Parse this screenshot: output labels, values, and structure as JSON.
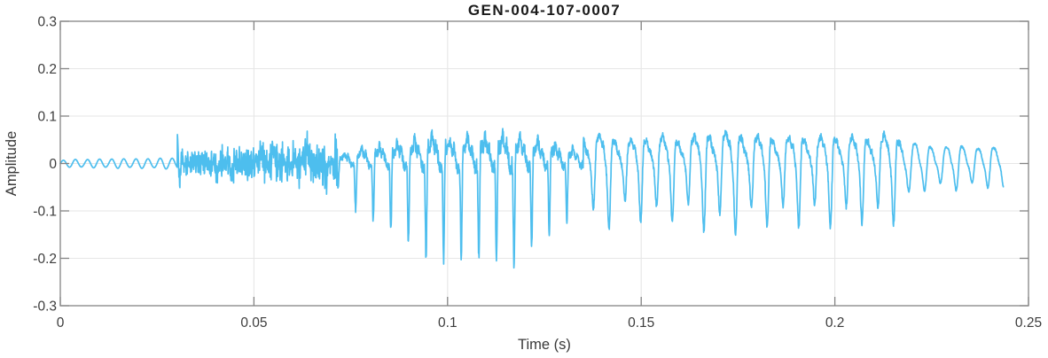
{
  "window": {
    "background": "#ffffff"
  },
  "chart_data": {
    "type": "line",
    "title": "GEN-004-107-0007",
    "xlabel": "Time (s)",
    "ylabel": "Amplitude",
    "xlim": [
      0,
      0.25
    ],
    "ylim": [
      -0.3,
      0.3
    ],
    "xticks": [
      0,
      0.05,
      0.1,
      0.15,
      0.2,
      0.25
    ],
    "xtick_labels": [
      "0",
      "0.05",
      "0.1",
      "0.15",
      "0.2",
      "0.25"
    ],
    "yticks": [
      -0.3,
      -0.2,
      -0.1,
      0,
      0.1,
      0.2,
      0.3
    ],
    "ytick_labels": [
      "-0.3",
      "-0.2",
      "-0.1",
      "0",
      "0.1",
      "0.2",
      "0.3"
    ],
    "grid": true,
    "box": true,
    "tick_direction": "in",
    "legend": null,
    "colors": {
      "line": "#4DBEEE",
      "grid": "#E6E6E6",
      "axis": "#848484",
      "tick_label": "#3C3C3C",
      "axis_label": "#383838",
      "title": "#1A1A1A",
      "background": "#FFFFFF"
    },
    "signal": {
      "description": "speech-like waveform, single light-blue series",
      "t_start": 0,
      "t_end": 0.2435,
      "peak_amplitude": 0.23,
      "min_amplitude": -0.22,
      "neg_scale": 0.94,
      "seed": 7,
      "segments": [
        {
          "type": "tone",
          "t0": 0,
          "t1": 0.0302,
          "freq": 320,
          "env": [
            [
              0,
              0.006
            ],
            [
              0.003,
              0.009
            ],
            [
              0.006,
              0.0075
            ],
            [
              0.009,
              0.01
            ],
            [
              0.012,
              0.008
            ],
            [
              0.015,
              0.011
            ],
            [
              0.018,
              0.0085
            ],
            [
              0.021,
              0.011
            ],
            [
              0.024,
              0.009
            ],
            [
              0.027,
              0.0125
            ],
            [
              0.0302,
              0.01
            ]
          ]
        },
        {
          "type": "click",
          "t0": 0.0302,
          "t1": 0.034,
          "freq": 760,
          "peak": 0.066,
          "decay": 950
        },
        {
          "type": "noise",
          "t0": 0.0305,
          "t1": 0.0715,
          "freqs": [
            1650,
            2250,
            2950,
            3600,
            4250
          ],
          "env": [
            [
              0.0305,
              0.016
            ],
            [
              0.038,
              0.019
            ],
            [
              0.044,
              0.022
            ],
            [
              0.05,
              0.026
            ],
            [
              0.056,
              0.028
            ],
            [
              0.061,
              0.026
            ],
            [
              0.066,
              0.032
            ],
            [
              0.0715,
              0.04
            ]
          ],
          "spikes": [
            [
              0.0405,
              -0.03
            ],
            [
              0.0443,
              -0.034
            ],
            [
              0.0519,
              0.03
            ],
            [
              0.0549,
              0.028
            ],
            [
              0.0638,
              0.032
            ],
            [
              0.0687,
              -0.03
            ]
          ]
        },
        {
          "type": "voiced",
          "t0": 0.0715,
          "t1": 0.135,
          "f0": 220,
          "harmonics": [
            1,
            0.62,
            0.48,
            0.55,
            0.35,
            0.25,
            0.15,
            0.1
          ],
          "phases": [
            0.2,
            1.3,
            2.6,
            4.1,
            5.3,
            0.6,
            1.9,
            3.1
          ],
          "jitter": 0.07,
          "env": [
            [
              0.0715,
              0.05
            ],
            [
              0.0743,
              0.09
            ],
            [
              0.0789,
              0.12
            ],
            [
              0.0832,
              0.135
            ],
            [
              0.0877,
              0.17
            ],
            [
              0.0925,
              0.185
            ],
            [
              0.0964,
              0.235
            ],
            [
              0.101,
              0.2
            ],
            [
              0.106,
              0.215
            ],
            [
              0.111,
              0.2
            ],
            [
              0.1165,
              0.235
            ],
            [
              0.121,
              0.195
            ],
            [
              0.126,
              0.16
            ],
            [
              0.131,
              0.125
            ],
            [
              0.135,
              0.11
            ]
          ]
        },
        {
          "type": "voiced",
          "t0": 0.135,
          "t1": 0.2175,
          "f0": 245,
          "harmonics": [
            1,
            0.5,
            0.22,
            0.12
          ],
          "phases": [
            0.5,
            2.0,
            3.6,
            5.0
          ],
          "subharm": 0.25,
          "jitter": 0.06,
          "env": [
            [
              0.135,
              0.115
            ],
            [
              0.14,
              0.13
            ],
            [
              0.145,
              0.1
            ],
            [
              0.15,
              0.11
            ],
            [
              0.155,
              0.12
            ],
            [
              0.16,
              0.105
            ],
            [
              0.166,
              0.125
            ],
            [
              0.172,
              0.14
            ],
            [
              0.178,
              0.125
            ],
            [
              0.184,
              0.115
            ],
            [
              0.19,
              0.12
            ],
            [
              0.196,
              0.115
            ],
            [
              0.202,
              0.125
            ],
            [
              0.208,
              0.11
            ],
            [
              0.2125,
              0.13
            ],
            [
              0.2175,
              0.1
            ]
          ]
        },
        {
          "type": "voiced",
          "t0": 0.2175,
          "t1": 0.2435,
          "f0": 245,
          "harmonics": [
            1,
            0.3,
            0.12
          ],
          "phases": [
            0.8,
            2.2,
            4.0
          ],
          "subharm": 0.15,
          "jitter": 0.04,
          "env": [
            [
              0.2175,
              0.08
            ],
            [
              0.222,
              0.055
            ],
            [
              0.228,
              0.05
            ],
            [
              0.233,
              0.055
            ],
            [
              0.2375,
              0.045
            ],
            [
              0.2414,
              0.052
            ],
            [
              0.2435,
              0.062
            ]
          ]
        }
      ]
    }
  }
}
